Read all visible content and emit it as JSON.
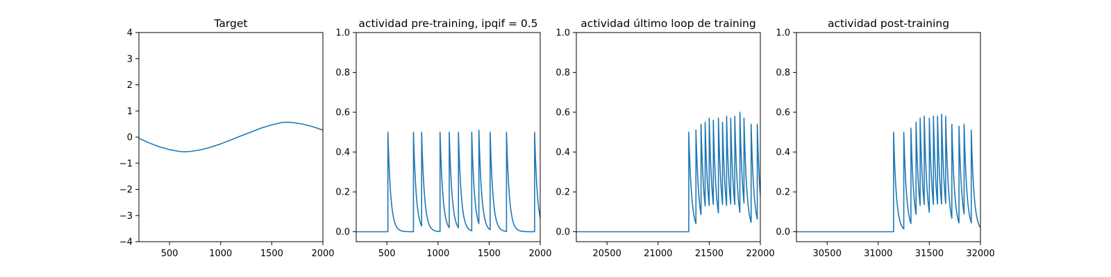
{
  "colors": {
    "series": "#1f77b4",
    "axes": "#000000",
    "background": "#ffffff"
  },
  "chart_data": [
    {
      "type": "line",
      "title": "Target",
      "xlabel": "",
      "ylabel": "",
      "xlim": [
        200,
        2000
      ],
      "ylim": [
        -4,
        4
      ],
      "xticks": [
        500,
        1000,
        1500,
        2000
      ],
      "yticks": [
        -4,
        -3,
        -2,
        -1,
        0,
        1,
        2,
        3,
        4
      ],
      "grid": false,
      "series": [
        {
          "kind": "sine",
          "description": "single smooth oscillation",
          "x": [
            200,
            300,
            400,
            500,
            600,
            650,
            700,
            800,
            900,
            1000,
            1100,
            1200,
            1300,
            1400,
            1500,
            1600,
            1650,
            1700,
            1800,
            1900,
            2000
          ],
          "y": [
            -0.05,
            -0.22,
            -0.37,
            -0.48,
            -0.55,
            -0.56,
            -0.55,
            -0.49,
            -0.39,
            -0.26,
            -0.11,
            0.05,
            0.2,
            0.35,
            0.47,
            0.56,
            0.57,
            0.56,
            0.5,
            0.4,
            0.27
          ]
        }
      ]
    },
    {
      "type": "line",
      "title": "actividad pre-training, ipqif = 0.5",
      "xlabel": "",
      "ylabel": "",
      "xlim": [
        200,
        2000
      ],
      "ylim": [
        -0.05,
        1.0
      ],
      "xticks": [
        500,
        1000,
        1500,
        2000
      ],
      "yticks": [
        0.0,
        0.2,
        0.4,
        0.6,
        0.8,
        1.0
      ],
      "grid": false,
      "series": [
        {
          "kind": "spikes",
          "baseline": 0.0,
          "spike_times": [
            510,
            760,
            840,
            1020,
            1110,
            1200,
            1330,
            1400,
            1510,
            1670,
            1945
          ],
          "spike_peaks": [
            0.5,
            0.5,
            0.5,
            0.5,
            0.5,
            0.5,
            0.5,
            0.51,
            0.5,
            0.5,
            0.5
          ],
          "decay": 28
        }
      ]
    },
    {
      "type": "line",
      "title": "actividad último loop de training",
      "xlabel": "",
      "ylabel": "",
      "xlim": [
        20200,
        22000
      ],
      "ylim": [
        -0.05,
        1.0
      ],
      "xticks": [
        20500,
        21000,
        21500,
        22000
      ],
      "yticks": [
        0.0,
        0.2,
        0.4,
        0.6,
        0.8,
        1.0
      ],
      "grid": false,
      "series": [
        {
          "kind": "spikes",
          "baseline": 0.0,
          "spike_times": [
            21300,
            21370,
            21420,
            21460,
            21500,
            21540,
            21590,
            21630,
            21670,
            21710,
            21750,
            21800,
            21840,
            21910,
            21970
          ],
          "spike_peaks": [
            0.5,
            0.51,
            0.54,
            0.55,
            0.57,
            0.56,
            0.57,
            0.55,
            0.58,
            0.57,
            0.58,
            0.6,
            0.57,
            0.54,
            0.54
          ],
          "decay": 28
        }
      ]
    },
    {
      "type": "line",
      "title": "actividad post-training",
      "xlabel": "",
      "ylabel": "",
      "xlim": [
        30200,
        32000
      ],
      "ylim": [
        -0.05,
        1.0
      ],
      "xticks": [
        30500,
        31000,
        31500,
        32000
      ],
      "yticks": [
        0.0,
        0.2,
        0.4,
        0.6,
        0.8,
        1.0
      ],
      "grid": false,
      "series": [
        {
          "kind": "spikes",
          "baseline": 0.0,
          "spike_times": [
            31150,
            31250,
            31320,
            31370,
            31410,
            31450,
            31500,
            31540,
            31580,
            31620,
            31660,
            31720,
            31790,
            31840,
            31910
          ],
          "spike_peaks": [
            0.5,
            0.5,
            0.52,
            0.55,
            0.57,
            0.58,
            0.57,
            0.58,
            0.58,
            0.59,
            0.58,
            0.54,
            0.53,
            0.54,
            0.51
          ],
          "decay": 28
        }
      ]
    }
  ]
}
